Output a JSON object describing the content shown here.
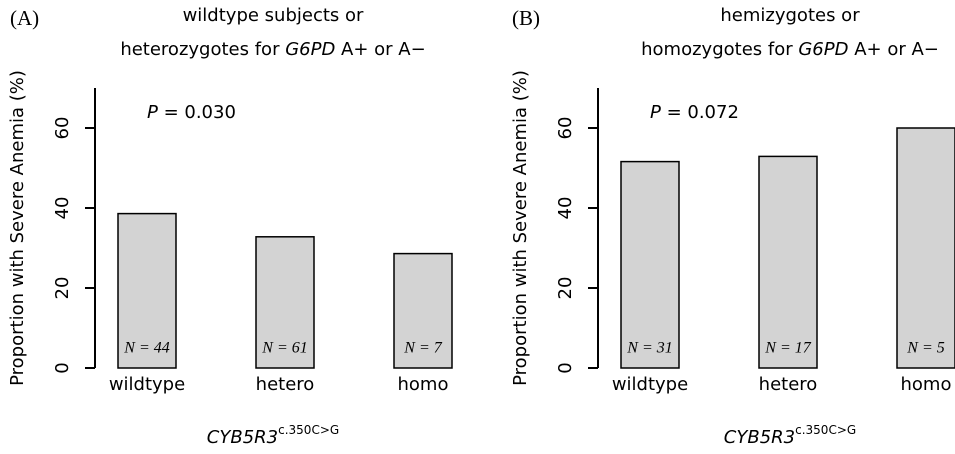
{
  "chart_data": [
    {
      "type": "bar",
      "panel_label": "(A)",
      "title": {
        "line1": "wildtype subjects or",
        "line2": [
          "heterozygotes for ",
          "G6PD",
          " A+ or A−"
        ]
      },
      "annotation": [
        "P",
        " = 0.030"
      ],
      "ylabel": "Proportion with Severe Anemia (%)",
      "xlabel": [
        "CYB5R3",
        "c.350C>G"
      ],
      "categories": [
        "wildtype",
        "hetero",
        "homo"
      ],
      "values": [
        38.6,
        32.8,
        28.6
      ],
      "value_labels": [
        "N = 44",
        "N = 61",
        "N = 7"
      ],
      "color": "#d3d3d3",
      "ylim": [
        0,
        70
      ],
      "yticks": [
        0,
        20,
        40,
        60
      ]
    },
    {
      "type": "bar",
      "panel_label": "(B)",
      "title": {
        "line1": "hemizygotes or",
        "line2": [
          "homozygotes for ",
          "G6PD",
          " A+ or A−"
        ]
      },
      "annotation": [
        "P",
        " = 0.072"
      ],
      "ylabel": "Proportion with Severe Anemia (%)",
      "xlabel": [
        "CYB5R3",
        "c.350C>G"
      ],
      "categories": [
        "wildtype",
        "hetero",
        "homo"
      ],
      "values": [
        51.6,
        52.9,
        60
      ],
      "value_labels": [
        "N = 31",
        "N = 17",
        "N = 5"
      ],
      "color": "#d3d3d3",
      "ylim": [
        0,
        70
      ],
      "yticks": [
        0,
        20,
        40,
        60
      ]
    }
  ]
}
